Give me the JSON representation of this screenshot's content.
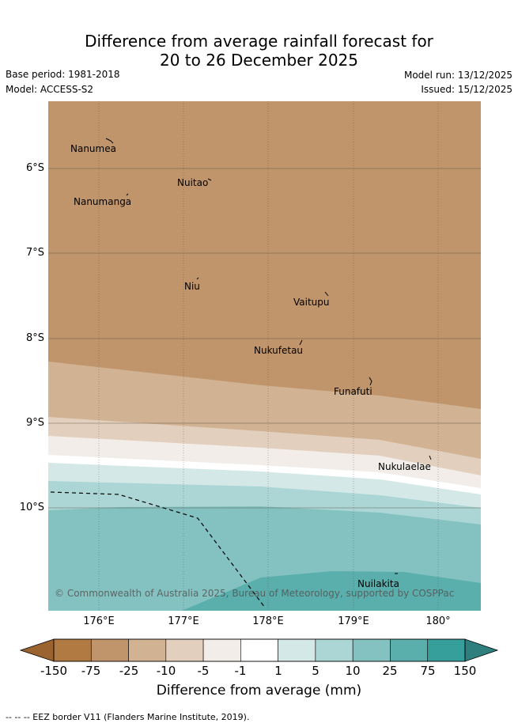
{
  "title": {
    "line1": "Difference from average rainfall forecast for",
    "line2": "20 to 26 December 2025"
  },
  "meta": {
    "base_period": "Base period: 1981-2018",
    "model": "Model: ACCESS-S2",
    "model_run": "Model run: 13/12/2025",
    "issued": "Issued: 15/12/2025"
  },
  "map": {
    "latitudes": [
      "6°S",
      "7°S",
      "8°S",
      "9°S",
      "10°S"
    ],
    "longitudes": [
      "176°E",
      "177°E",
      "178°E",
      "179°E",
      "180°"
    ],
    "places": [
      "Nanumea",
      "Nuitao",
      "Nanumanga",
      "Niu",
      "Vaitupu",
      "Nukufetau",
      "Funafuti",
      "Nukulaelae",
      "Nuilakita"
    ],
    "copyright": "© Commonwealth of Australia 2025, Bureau of Meteorology, supported by COSPPac"
  },
  "colorbar": {
    "labels": [
      "-150",
      "-75",
      "-25",
      "-10",
      "-5",
      "-1",
      "1",
      "5",
      "10",
      "25",
      "75",
      "150"
    ],
    "colors": [
      "#9a6330",
      "#b07a42",
      "#c0956b",
      "#d1b293",
      "#e3cfbe",
      "#f2ede8",
      "#ffffff",
      "#d4e8e7",
      "#acd6d5",
      "#83c2c1",
      "#5aaeac",
      "#369e9b",
      "#2e7f7d"
    ],
    "title": "Difference from average (mm)"
  },
  "footer": {
    "legend_line": "-- -- -- EEZ border V11 (Flanders Marine Institute, 2019)."
  }
}
